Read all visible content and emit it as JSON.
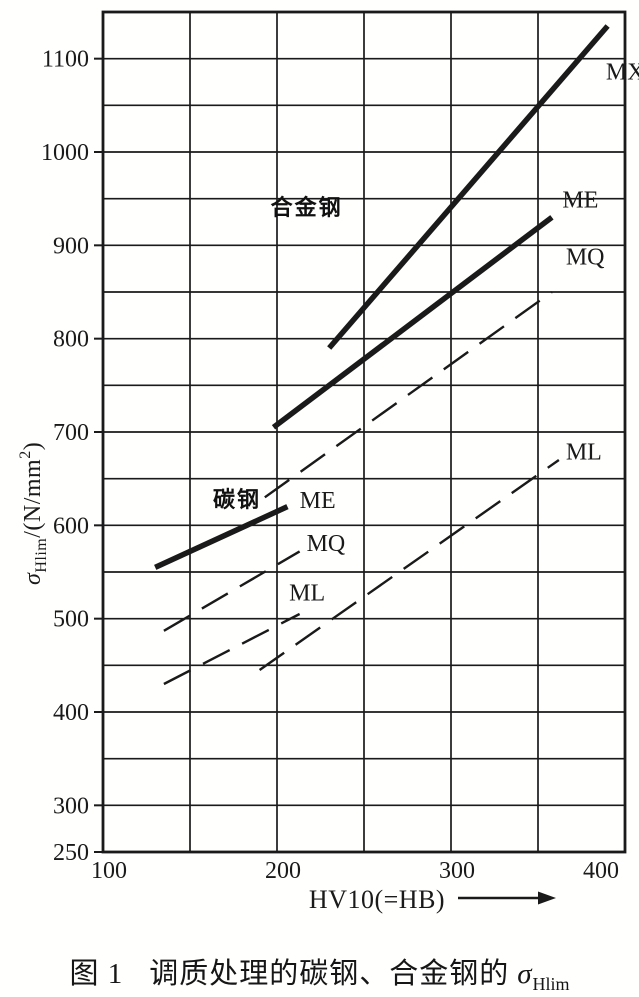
{
  "figure": {
    "caption_prefix": "图 1",
    "caption_text": "调质处理的碳钢、合金钢的",
    "caption_sigma": "σ",
    "caption_sub": "Hlim"
  },
  "colors": {
    "ink": "#1a1a1a",
    "paper": "#ffffff"
  },
  "chart_data": {
    "type": "line",
    "title": "",
    "xlabel": "HV10(=HB)",
    "ylabel": {
      "sigma": "σ",
      "sub": "Hlim",
      "rest": "/(N/mm",
      "sup": "2",
      "close": ")"
    },
    "xlim": [
      100,
      400
    ],
    "ylim": [
      250,
      1150
    ],
    "x_ticks": [
      100,
      200,
      300,
      400
    ],
    "y_ticks": [
      250,
      300,
      400,
      500,
      600,
      700,
      800,
      900,
      1000,
      1100
    ],
    "grid_step_x": 50,
    "grid_step_y": 50,
    "grid": true,
    "legend_position": "inline-labels",
    "series": [
      {
        "key": "alloy-mx",
        "group": "合金钢",
        "grade": "MX",
        "line": "solid-thick",
        "points": [
          [
            230,
            790
          ],
          [
            390,
            1135
          ]
        ]
      },
      {
        "key": "alloy-me",
        "group": "合金钢",
        "grade": "ME",
        "line": "solid-thick",
        "points": [
          [
            198,
            705
          ],
          [
            358,
            930
          ]
        ]
      },
      {
        "key": "alloy-mq",
        "group": "合金钢",
        "grade": "MQ",
        "line": "dashed",
        "points": [
          [
            193,
            630
          ],
          [
            358,
            850
          ]
        ]
      },
      {
        "key": "alloy-ml",
        "group": "合金钢",
        "grade": "ML",
        "line": "dashed",
        "points": [
          [
            190,
            445
          ],
          [
            362,
            670
          ]
        ]
      },
      {
        "key": "carbon-me",
        "group": "碳钢",
        "grade": "ME",
        "line": "solid-thick",
        "points": [
          [
            130,
            555
          ],
          [
            206,
            620
          ]
        ]
      },
      {
        "key": "carbon-mq",
        "group": "碳钢",
        "grade": "MQ",
        "line": "dashed",
        "points": [
          [
            135,
            487
          ],
          [
            213,
            572
          ]
        ]
      },
      {
        "key": "carbon-ml",
        "group": "碳钢",
        "grade": "ML",
        "line": "dashed",
        "points": [
          [
            135,
            430
          ],
          [
            213,
            505
          ]
        ]
      }
    ],
    "annotations": [
      {
        "key": "alloy-group-label",
        "text": "合金钢",
        "x": 217,
        "y": 941,
        "anchor": "middle",
        "bold": true
      },
      {
        "key": "carbon-group-label",
        "text": "碳钢",
        "x": 177,
        "y": 628,
        "anchor": "middle",
        "bold": true
      },
      {
        "key": "alloy-mx-label",
        "text": "MX",
        "x": 389,
        "y": 1086,
        "anchor": "start",
        "bold": false
      },
      {
        "key": "alloy-me-label",
        "text": "ME",
        "x": 364,
        "y": 949,
        "anchor": "start",
        "bold": false
      },
      {
        "key": "alloy-mq-label",
        "text": "MQ",
        "x": 366,
        "y": 888,
        "anchor": "start",
        "bold": false
      },
      {
        "key": "alloy-ml-label",
        "text": "ML",
        "x": 366,
        "y": 679,
        "anchor": "start",
        "bold": false
      },
      {
        "key": "carbon-me-label",
        "text": "ME",
        "x": 213,
        "y": 627,
        "anchor": "start",
        "bold": false
      },
      {
        "key": "carbon-mq-label",
        "text": "MQ",
        "x": 217,
        "y": 581,
        "anchor": "start",
        "bold": false
      },
      {
        "key": "carbon-ml-label",
        "text": "ML",
        "x": 207,
        "y": 528,
        "anchor": "start",
        "bold": false
      }
    ]
  }
}
